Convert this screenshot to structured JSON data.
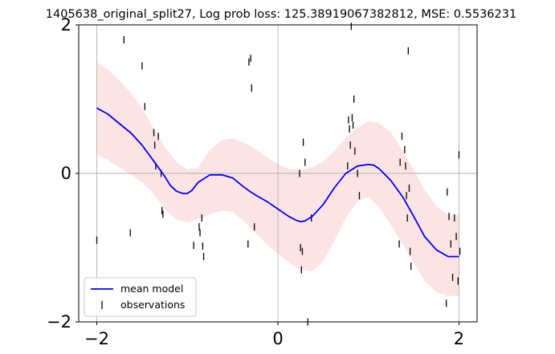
{
  "chart_data": {
    "type": "line",
    "title": "1405638_original_split27, Log prob loss: 125.38919067382812, MSE: 0.5536231",
    "xlabel": "",
    "ylabel": "",
    "xlim": [
      -2.2,
      2.2
    ],
    "ylim": [
      -2,
      2
    ],
    "x_ticks": [
      -2,
      0,
      2
    ],
    "x_tick_labels": [
      "−2",
      "0",
      "2"
    ],
    "y_ticks": [
      -2,
      0,
      2
    ],
    "y_tick_labels": [
      "−2",
      "0",
      "2"
    ],
    "grid": true,
    "legend": {
      "placement": "lower-left",
      "entries": [
        "mean model",
        "observations"
      ]
    },
    "colors": {
      "mean": "#0000ff",
      "band": "#fde4e4",
      "observations": "#000000",
      "grid": "#b0b0b0"
    },
    "series": [
      {
        "name": "mean model",
        "type": "line",
        "x": [
          -2.0,
          -1.88,
          -1.75,
          -1.62,
          -1.5,
          -1.38,
          -1.25,
          -1.19,
          -1.12,
          -1.05,
          -1.0,
          -0.95,
          -0.88,
          -0.75,
          -0.62,
          -0.5,
          -0.38,
          -0.3,
          -0.25,
          -0.12,
          0.0,
          0.12,
          0.2,
          0.25,
          0.3,
          0.38,
          0.5,
          0.62,
          0.75,
          0.88,
          1.0,
          1.06,
          1.12,
          1.25,
          1.38,
          1.5,
          1.62,
          1.75,
          1.88,
          2.0
        ],
        "y": [
          0.88,
          0.8,
          0.67,
          0.54,
          0.38,
          0.18,
          -0.04,
          -0.16,
          -0.24,
          -0.27,
          -0.27,
          -0.23,
          -0.12,
          -0.02,
          -0.02,
          -0.06,
          -0.18,
          -0.25,
          -0.29,
          -0.38,
          -0.48,
          -0.58,
          -0.63,
          -0.65,
          -0.64,
          -0.58,
          -0.42,
          -0.2,
          0.0,
          0.1,
          0.12,
          0.11,
          0.06,
          -0.1,
          -0.32,
          -0.58,
          -0.85,
          -1.03,
          -1.12,
          -1.12
        ]
      },
      {
        "name": "",
        "type": "band",
        "x": [
          -2.0,
          -1.88,
          -1.75,
          -1.62,
          -1.5,
          -1.38,
          -1.25,
          -1.12,
          -1.0,
          -0.88,
          -0.75,
          -0.62,
          -0.5,
          -0.38,
          -0.25,
          -0.12,
          0.0,
          0.12,
          0.25,
          0.38,
          0.5,
          0.62,
          0.75,
          0.88,
          1.0,
          1.12,
          1.25,
          1.38,
          1.5,
          1.62,
          1.75,
          1.88,
          2.0
        ],
        "upper": [
          1.5,
          1.4,
          1.25,
          1.08,
          0.88,
          0.62,
          0.36,
          0.15,
          0.05,
          0.08,
          0.32,
          0.45,
          0.47,
          0.42,
          0.33,
          0.22,
          0.12,
          0.06,
          0.05,
          0.08,
          0.16,
          0.3,
          0.48,
          0.62,
          0.7,
          0.68,
          0.55,
          0.3,
          0.05,
          -0.22,
          -0.44,
          -0.56,
          -0.56
        ],
        "lower": [
          0.25,
          0.18,
          0.08,
          -0.02,
          -0.12,
          -0.26,
          -0.48,
          -0.62,
          -0.66,
          -0.62,
          -0.55,
          -0.5,
          -0.52,
          -0.64,
          -0.8,
          -0.96,
          -1.08,
          -1.2,
          -1.3,
          -1.32,
          -1.18,
          -0.92,
          -0.6,
          -0.38,
          -0.32,
          -0.46,
          -0.7,
          -0.96,
          -1.2,
          -1.45,
          -1.6,
          -1.65,
          -1.65
        ]
      },
      {
        "name": "observations",
        "type": "scatter",
        "x": [
          -2.0,
          -1.7,
          -1.63,
          -1.5,
          -1.47,
          -1.37,
          -1.36,
          -1.35,
          -1.32,
          -1.29,
          -1.28,
          -1.27,
          -0.93,
          -0.87,
          -0.86,
          -0.84,
          -0.83,
          -0.82,
          -0.33,
          -0.32,
          -0.3,
          -0.29,
          -0.26,
          0.24,
          0.25,
          0.26,
          0.27,
          0.28,
          0.3,
          0.33,
          0.37,
          0.77,
          0.78,
          0.79,
          0.8,
          0.81,
          0.82,
          0.83,
          0.84,
          0.85,
          0.88,
          0.9,
          1.34,
          1.35,
          1.37,
          1.4,
          1.41,
          1.42,
          1.43,
          1.44,
          1.45,
          1.46,
          1.47,
          1.86,
          1.87,
          1.89,
          1.91,
          1.93,
          1.95,
          1.97,
          1.99,
          2.0,
          2.01
        ],
        "y": [
          -0.9,
          1.8,
          -0.8,
          1.45,
          0.9,
          0.55,
          0.38,
          0.1,
          0.5,
          0.0,
          -0.5,
          -0.55,
          -0.97,
          -0.72,
          -0.8,
          -0.6,
          -0.98,
          -1.12,
          -0.95,
          1.5,
          1.55,
          1.15,
          -0.72,
          0.0,
          -1.0,
          -1.3,
          -1.05,
          0.42,
          0.15,
          -2.0,
          -0.6,
          0.1,
          0.72,
          0.6,
          0.38,
          1.98,
          0.75,
          0.65,
          1.0,
          0.3,
          0.0,
          -0.3,
          -0.95,
          0.15,
          0.5,
          0.32,
          0.1,
          -0.3,
          -0.6,
          1.65,
          -0.2,
          -1.05,
          -1.25,
          -1.75,
          -0.25,
          -0.58,
          -0.95,
          -1.4,
          -0.6,
          -0.85,
          -1.45,
          0.25,
          -1.05
        ]
      }
    ]
  }
}
